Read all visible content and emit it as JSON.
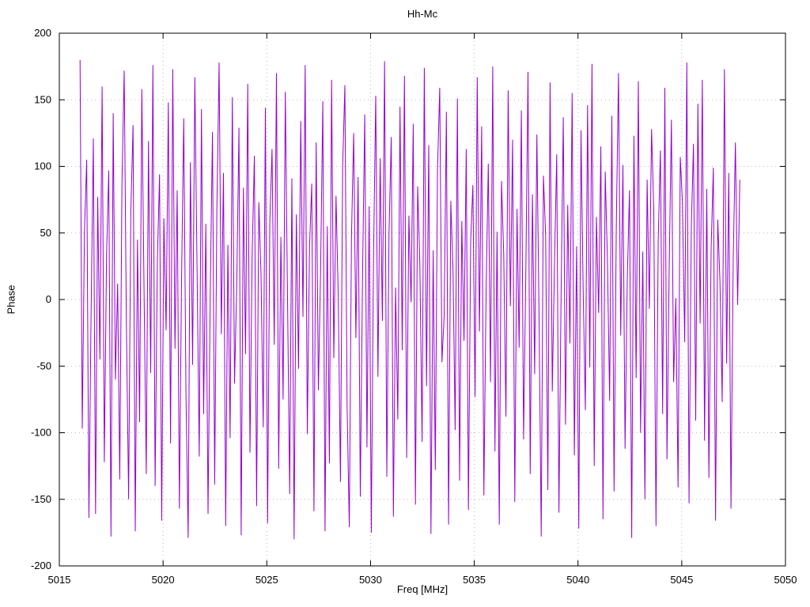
{
  "chart_data": {
    "type": "line",
    "title": "Hh-Mc",
    "xlabel": "Freq [MHz]",
    "ylabel": "Phase",
    "xlim": [
      5015,
      5050
    ],
    "ylim": [
      -200,
      200
    ],
    "xticks": [
      5015,
      5020,
      5025,
      5030,
      5035,
      5040,
      5045,
      5050
    ],
    "yticks": [
      -200,
      -150,
      -100,
      -50,
      0,
      50,
      100,
      150,
      200
    ],
    "grid": "dotted",
    "legend": "none",
    "line_color": "#9400d3",
    "grid_color": "#b8b8b8",
    "border_color": "#000000",
    "series_name": "Phase",
    "x_range": [
      5016.0,
      5047.8
    ],
    "values": [
      180,
      -97,
      52,
      105,
      -164,
      -8,
      121,
      -161,
      77,
      -45,
      160,
      -122,
      33,
      97,
      -178,
      140,
      -60,
      12,
      -135,
      88,
      172,
      -19,
      -150,
      66,
      131,
      -174,
      45,
      -92,
      158,
      7,
      -131,
      119,
      -55,
      176,
      -140,
      28,
      94,
      -166,
      61,
      -23,
      148,
      -108,
      173,
      -37,
      82,
      -157,
      15,
      136,
      -71,
      -179,
      103,
      -49,
      167,
      24,
      -118,
      143,
      -86,
      57,
      -161,
      4,
      126,
      -139,
      69,
      178,
      -26,
      95,
      -170,
      41,
      -104,
      152,
      -63,
      11,
      129,
      -177,
      84,
      -41,
      162,
      -115,
      35,
      108,
      -155,
      73,
      19,
      -96,
      144,
      -168,
      58,
      113,
      -34,
      170,
      -127,
      47,
      -75,
      156,
      6,
      -146,
      91,
      -180,
      64,
      -52,
      134,
      -13,
      176,
      -101,
      39,
      87,
      -159,
      118,
      -68,
      21,
      149,
      -174,
      55,
      -123,
      165,
      -44,
      78,
      3,
      -137,
      100,
      161,
      -80,
      -171,
      46,
      125,
      -29,
      92,
      -148,
      17,
      139,
      -111,
      70,
      -175,
      31,
      153,
      -58,
      106,
      -16,
      179,
      -133,
      50,
      122,
      -163,
      9,
      -90,
      145,
      -38,
      168,
      -119,
      63,
      -2,
      132,
      -154,
      85,
      26,
      -107,
      174,
      -65,
      116,
      -176,
      37,
      -128,
      98,
      159,
      -47,
      -12,
      141,
      -169,
      74,
      22,
      -98,
      151,
      -136,
      59,
      -31,
      113,
      -158,
      43,
      86,
      -73,
      167,
      -24,
      130,
      -147,
      5,
      102,
      -62,
      175,
      -114,
      51,
      -169,
      89,
      34,
      -88,
      157,
      -5,
      120,
      -152,
      68,
      -36,
      142,
      -105,
      18,
      171,
      -131,
      79,
      -56,
      124,
      -14,
      -178,
      93,
      48,
      -143,
      163,
      -69,
      27,
      109,
      -160,
      2,
      137,
      -94,
      71,
      -33,
      155,
      -117,
      40,
      -172,
      127,
      8,
      -83,
      146,
      -51,
      177,
      -125,
      62,
      -10,
      115,
      -165,
      96,
      30,
      -76,
      138,
      -144,
      54,
      170,
      -27,
      101,
      -112,
      15,
      82,
      -179,
      123,
      -59,
      164,
      -100,
      36,
      -150,
      90,
      -7,
      128,
      67,
      -170,
      44,
      112,
      -86,
      159,
      -120,
      25,
      135,
      -62,
      1,
      -141,
      107,
      72,
      -32,
      178,
      -153,
      53,
      117,
      -91,
      147,
      -18,
      165,
      -106,
      83,
      -134,
      38,
      99,
      -166,
      60,
      13,
      -77,
      173,
      -48,
      95,
      -157,
      29,
      118,
      -4,
      90
    ]
  }
}
